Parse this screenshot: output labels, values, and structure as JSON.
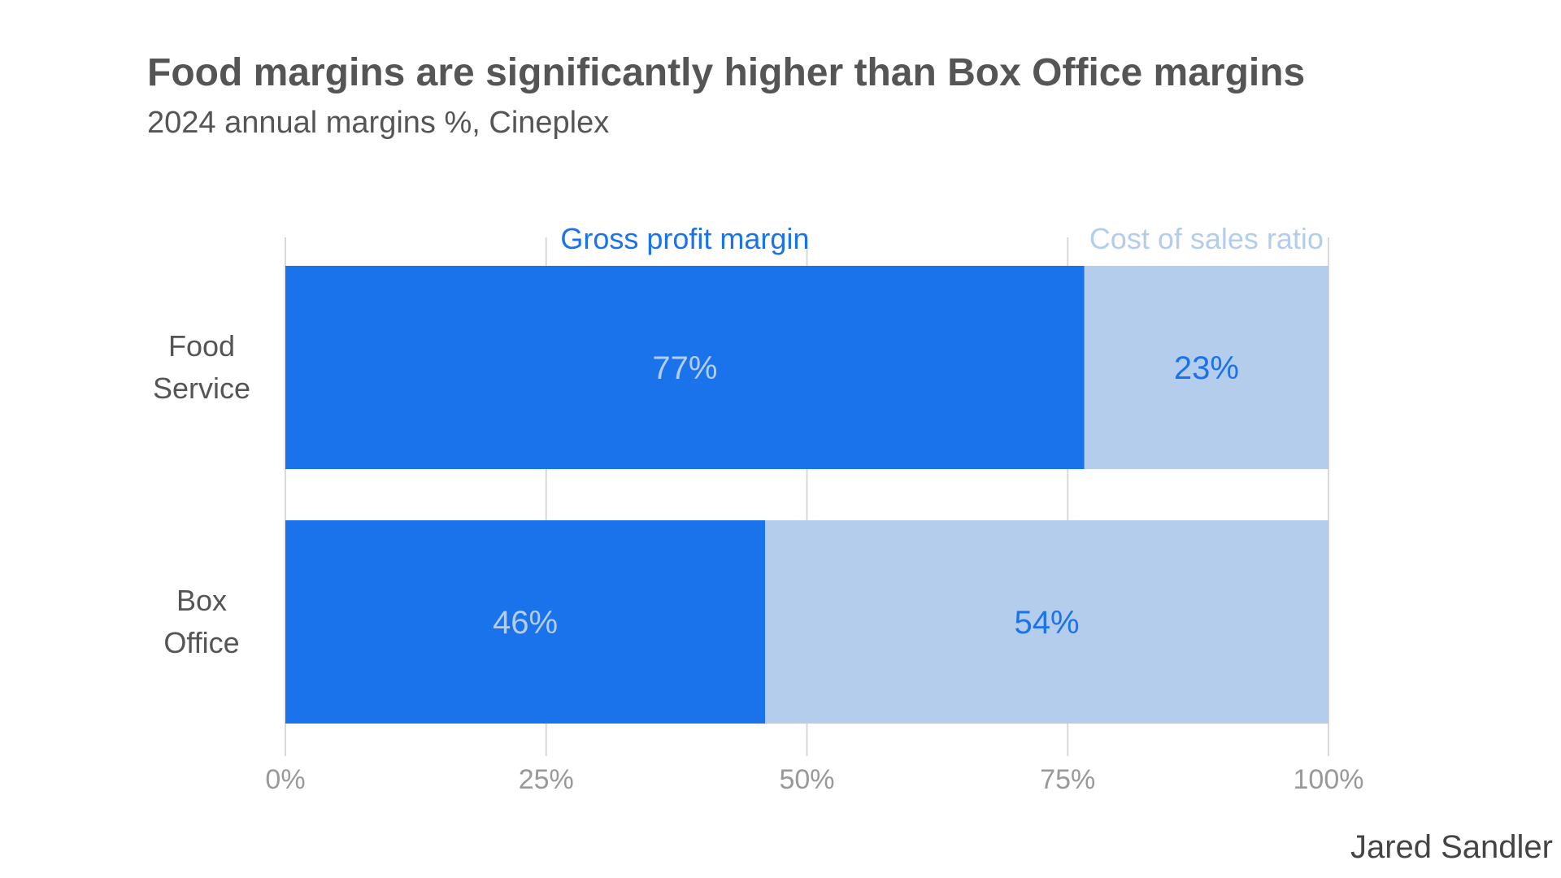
{
  "colors": {
    "gross": "#1a73eb",
    "cost": "#b4cdec",
    "grid": "#d9d9d9",
    "tick": "#999999",
    "category": "#555555",
    "gross_label_text": "#b4cdec",
    "cost_label_text": "#1a73eb"
  },
  "chart_data": {
    "type": "bar",
    "orientation": "horizontal",
    "stacked": true,
    "title": "Food margins are significantly higher than Box Office margins",
    "subtitle": "2024 annual margins %, Cineplex",
    "credit": "Jared Sandler",
    "categories": [
      [
        "Food",
        "Service"
      ],
      [
        "Box",
        "Office"
      ]
    ],
    "series": [
      {
        "name": "Gross profit margin",
        "values": [
          76.6,
          46
        ],
        "labels": [
          "77%",
          "46%"
        ]
      },
      {
        "name": "Cost of sales ratio",
        "values": [
          23.4,
          54
        ],
        "labels": [
          "23%",
          "54%"
        ]
      }
    ],
    "xlim": [
      0,
      100
    ],
    "xticks": [
      0,
      25,
      50,
      75,
      100
    ],
    "xtick_labels": [
      "0%",
      "25%",
      "50%",
      "75%",
      "100%"
    ],
    "grid": true,
    "legend": "direct labels above top bar"
  }
}
